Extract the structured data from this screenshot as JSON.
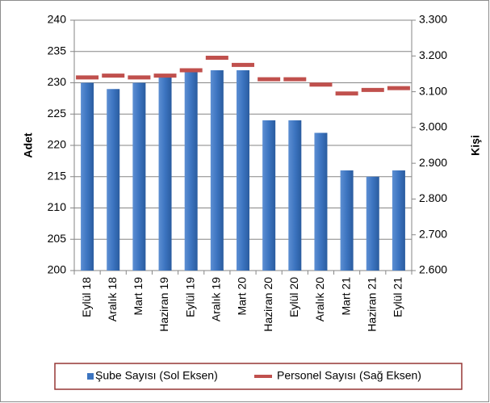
{
  "chart_data": {
    "type": "bar",
    "categories": [
      "Eylül 18",
      "Aralık 18",
      "Mart 19",
      "Haziran 19",
      "Eylül 19",
      "Aralık 19",
      "Mart 20",
      "Haziran 20",
      "Eylül 20",
      "Aralık 20",
      "Mart 21",
      "Haziran 21",
      "Eylül 21"
    ],
    "series": [
      {
        "name": "Şube Sayısı (Sol Eksen)",
        "type": "bar",
        "color": "#3c74c0",
        "values": [
          230,
          229,
          230,
          231,
          232,
          232,
          232,
          224,
          224,
          222,
          216,
          215,
          216
        ]
      },
      {
        "name": "Personel Sayısı (Sağ Eksen)",
        "type": "line",
        "axis": "y2",
        "color": "#c0504d",
        "values": [
          3140,
          3145,
          3140,
          3145,
          3160,
          3195,
          3175,
          3135,
          3135,
          3120,
          3095,
          3105,
          3110
        ]
      }
    ],
    "ylabel": "Adet",
    "y2label": "Kişi",
    "ylim": [
      200,
      240
    ],
    "yticks": [
      200,
      205,
      210,
      215,
      220,
      225,
      230,
      235,
      240
    ],
    "y2lim": [
      2600,
      3300
    ],
    "y2ticks": [
      {
        "value": 2600,
        "label": "2.600"
      },
      {
        "value": 2700,
        "label": "2.700"
      },
      {
        "value": 2800,
        "label": "2.800"
      },
      {
        "value": 2900,
        "label": "2.900"
      },
      {
        "value": 3000,
        "label": "3.000"
      },
      {
        "value": 3100,
        "label": "3.100"
      },
      {
        "value": 3200,
        "label": "3.200"
      },
      {
        "value": 3300,
        "label": "3.300"
      }
    ],
    "grid": true,
    "legend": "bottom"
  }
}
